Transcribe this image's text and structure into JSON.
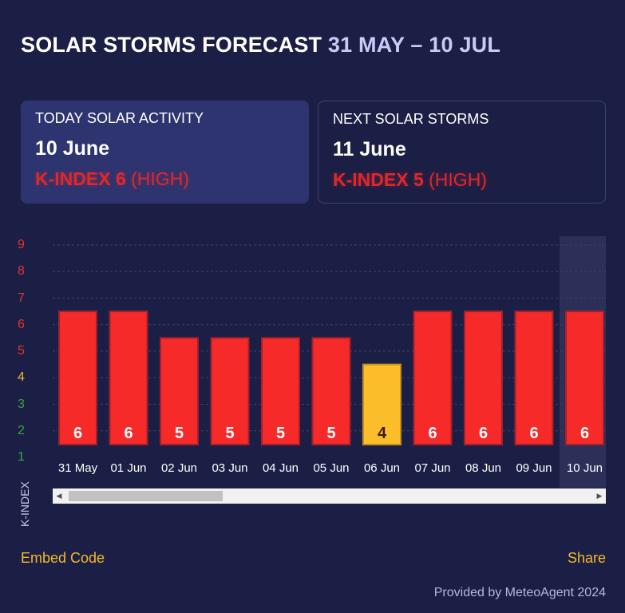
{
  "header": {
    "title": "SOLAR STORMS FORECAST",
    "range": "31 MAY – 10 JUL"
  },
  "today": {
    "label": "TODAY SOLAR ACTIVITY",
    "date": "10 June",
    "kindex": "K-INDEX 6",
    "level": "(HIGH)"
  },
  "next": {
    "label": "NEXT SOLAR STORMS",
    "date": "11 June",
    "kindex": "K-INDEX 5",
    "level": "(HIGH)"
  },
  "colors": {
    "background": "#1c1f45",
    "high": "#f72a2a",
    "moderate": "#fbbd2a",
    "axis_high": "#e8322e",
    "axis_moderate": "#f5b82a",
    "axis_low": "#3aa63a",
    "link": "#f5b82a"
  },
  "chart_data": {
    "type": "bar",
    "title": "SOLAR STORMS FORECAST",
    "ylabel": "K-INDEX",
    "xlabel": "",
    "ylim": [
      1,
      9
    ],
    "yticks": [
      "1",
      "2",
      "3",
      "4",
      "5",
      "6",
      "7",
      "8",
      "9"
    ],
    "categories": [
      "31 May",
      "01 Jun",
      "02 Jun",
      "03 Jun",
      "04 Jun",
      "05 Jun",
      "06 Jun",
      "07 Jun",
      "08 Jun",
      "09 Jun",
      "10 Jun"
    ],
    "values": [
      6,
      6,
      5,
      5,
      5,
      5,
      4,
      6,
      6,
      6,
      6
    ],
    "highlighted": "10 Jun",
    "grid": true
  },
  "footer": {
    "embed": "Embed Code",
    "share": "Share",
    "credit": "Provided by MeteoAgent 2024"
  },
  "scrollbar": {
    "left_arrow": "◀",
    "right_arrow": "▶"
  }
}
